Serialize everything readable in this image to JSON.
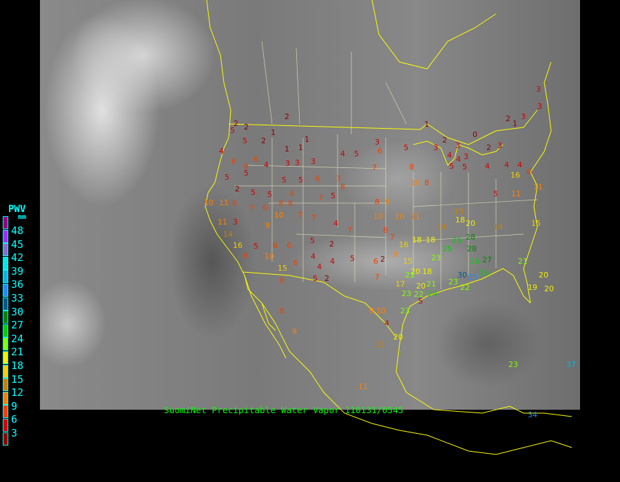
{
  "legend": {
    "title": "PWV",
    "unit": "mm",
    "labels": [
      "48",
      "45",
      "42",
      "39",
      "36",
      "33",
      "30",
      "27",
      "24",
      "21",
      "18",
      "15",
      "12",
      "9",
      "6",
      "3"
    ],
    "colors": [
      "#8b008b",
      "#9a30ff",
      "#8070d0",
      "#00e8e8",
      "#00b8e8",
      "#1890ff",
      "#005a90",
      "#008800",
      "#00d000",
      "#80ff00",
      "#f0f000",
      "#f0d000",
      "#c88000",
      "#ff8000",
      "#f04000",
      "#d00000",
      "#8b0000"
    ]
  },
  "caption": "SuomiNet Precipitable Water Vapor 110131/0545",
  "map_colors": {
    "borders": "#ffff00",
    "state_lines": "#e8e8c0"
  },
  "stations": [
    2,
    2,
    2,
    5,
    2,
    1,
    1,
    1,
    1,
    5,
    4,
    6,
    6,
    6,
    5,
    5,
    4,
    3,
    3,
    3,
    5,
    5,
    6,
    7,
    4,
    5,
    3,
    6,
    5,
    7,
    8,
    1,
    3,
    2,
    3,
    0,
    2,
    1,
    3,
    3,
    3,
    3,
    2,
    4,
    4,
    3,
    5,
    5,
    4,
    4,
    4,
    6,
    2,
    5,
    5,
    6,
    7,
    5,
    8,
    10,
    8,
    10,
    11,
    6,
    7,
    6,
    8,
    8,
    8,
    9,
    11,
    3,
    9,
    10,
    7,
    7,
    4,
    7,
    10,
    10,
    11,
    8,
    7,
    16,
    18,
    18,
    14,
    13,
    18,
    20,
    14,
    16,
    5,
    6,
    6,
    5,
    2,
    5,
    6,
    2,
    9,
    15,
    20,
    18,
    23,
    25,
    25,
    28,
    28,
    26,
    27,
    30,
    33,
    26,
    21,
    20,
    19,
    20,
    6,
    10,
    15,
    6,
    4,
    4,
    4,
    5,
    2,
    8,
    7,
    17,
    20,
    21,
    21,
    23,
    22,
    24,
    23,
    22,
    23,
    5,
    9,
    10,
    4,
    20,
    13,
    11,
    8,
    9,
    23,
    37,
    34,
    14,
    15,
    11,
    5,
    16,
    11
  ]
}
